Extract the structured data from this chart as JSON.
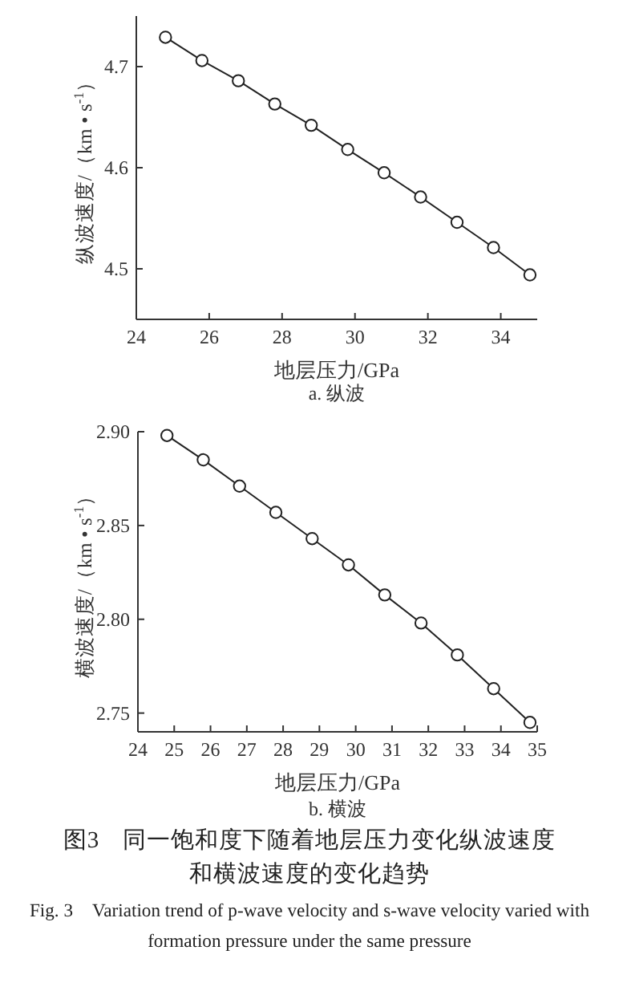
{
  "chart_data": [
    {
      "type": "line",
      "subtitle": "a. 纵波",
      "xlabel": "地层压力/GPa",
      "ylabel": "纵波速度/（km • s$^{-1}$）",
      "x": [
        24.8,
        25.8,
        26.8,
        27.8,
        28.8,
        29.8,
        30.8,
        31.8,
        32.8,
        33.8,
        34.8
      ],
      "series": [
        {
          "color": "#222222",
          "values": [
            4.729,
            4.706,
            4.686,
            4.663,
            4.642,
            4.618,
            4.595,
            4.571,
            4.546,
            4.521,
            4.494
          ]
        }
      ],
      "xlim": [
        24,
        35
      ],
      "xticks": [
        24,
        26,
        28,
        30,
        32,
        34
      ],
      "ylim": [
        4.45,
        4.75
      ],
      "yticks": [
        4.5,
        4.6,
        4.7
      ],
      "marker": "circle",
      "line_style": "solid",
      "grid": false
    },
    {
      "type": "line",
      "subtitle": "b. 横波",
      "xlabel": "地层压力/GPa",
      "ylabel": "横波速度/（km • s$^{-1}$）",
      "x": [
        24.8,
        25.8,
        26.8,
        27.8,
        28.8,
        29.8,
        30.8,
        31.8,
        32.8,
        33.8,
        34.8
      ],
      "series": [
        {
          "color": "#222222",
          "values": [
            2.898,
            2.885,
            2.871,
            2.857,
            2.843,
            2.829,
            2.813,
            2.798,
            2.781,
            2.763,
            2.745
          ]
        }
      ],
      "xlim": [
        24,
        35
      ],
      "xticks": [
        24,
        25,
        26,
        27,
        28,
        29,
        30,
        31,
        32,
        33,
        34,
        35
      ],
      "ylim": [
        2.74,
        2.9
      ],
      "yticks": [
        {
          "value": 2.75,
          "label": "2.75"
        },
        {
          "value": 2.8,
          "label": "2.80"
        },
        {
          "value": 2.85,
          "label": "2.85"
        },
        {
          "value": 2.9,
          "label": "2.90"
        }
      ],
      "marker": "circle",
      "line_style": "solid",
      "grid": false,
      "annotations": [
        "图3　同一饱和度下随着地层压力变化纵波速度和横波速度的变化趋势",
        "Fig. 3　Variation trend of p-wave velocity and s-wave velocity varied with formation pressure under the same pressure"
      ]
    }
  ]
}
